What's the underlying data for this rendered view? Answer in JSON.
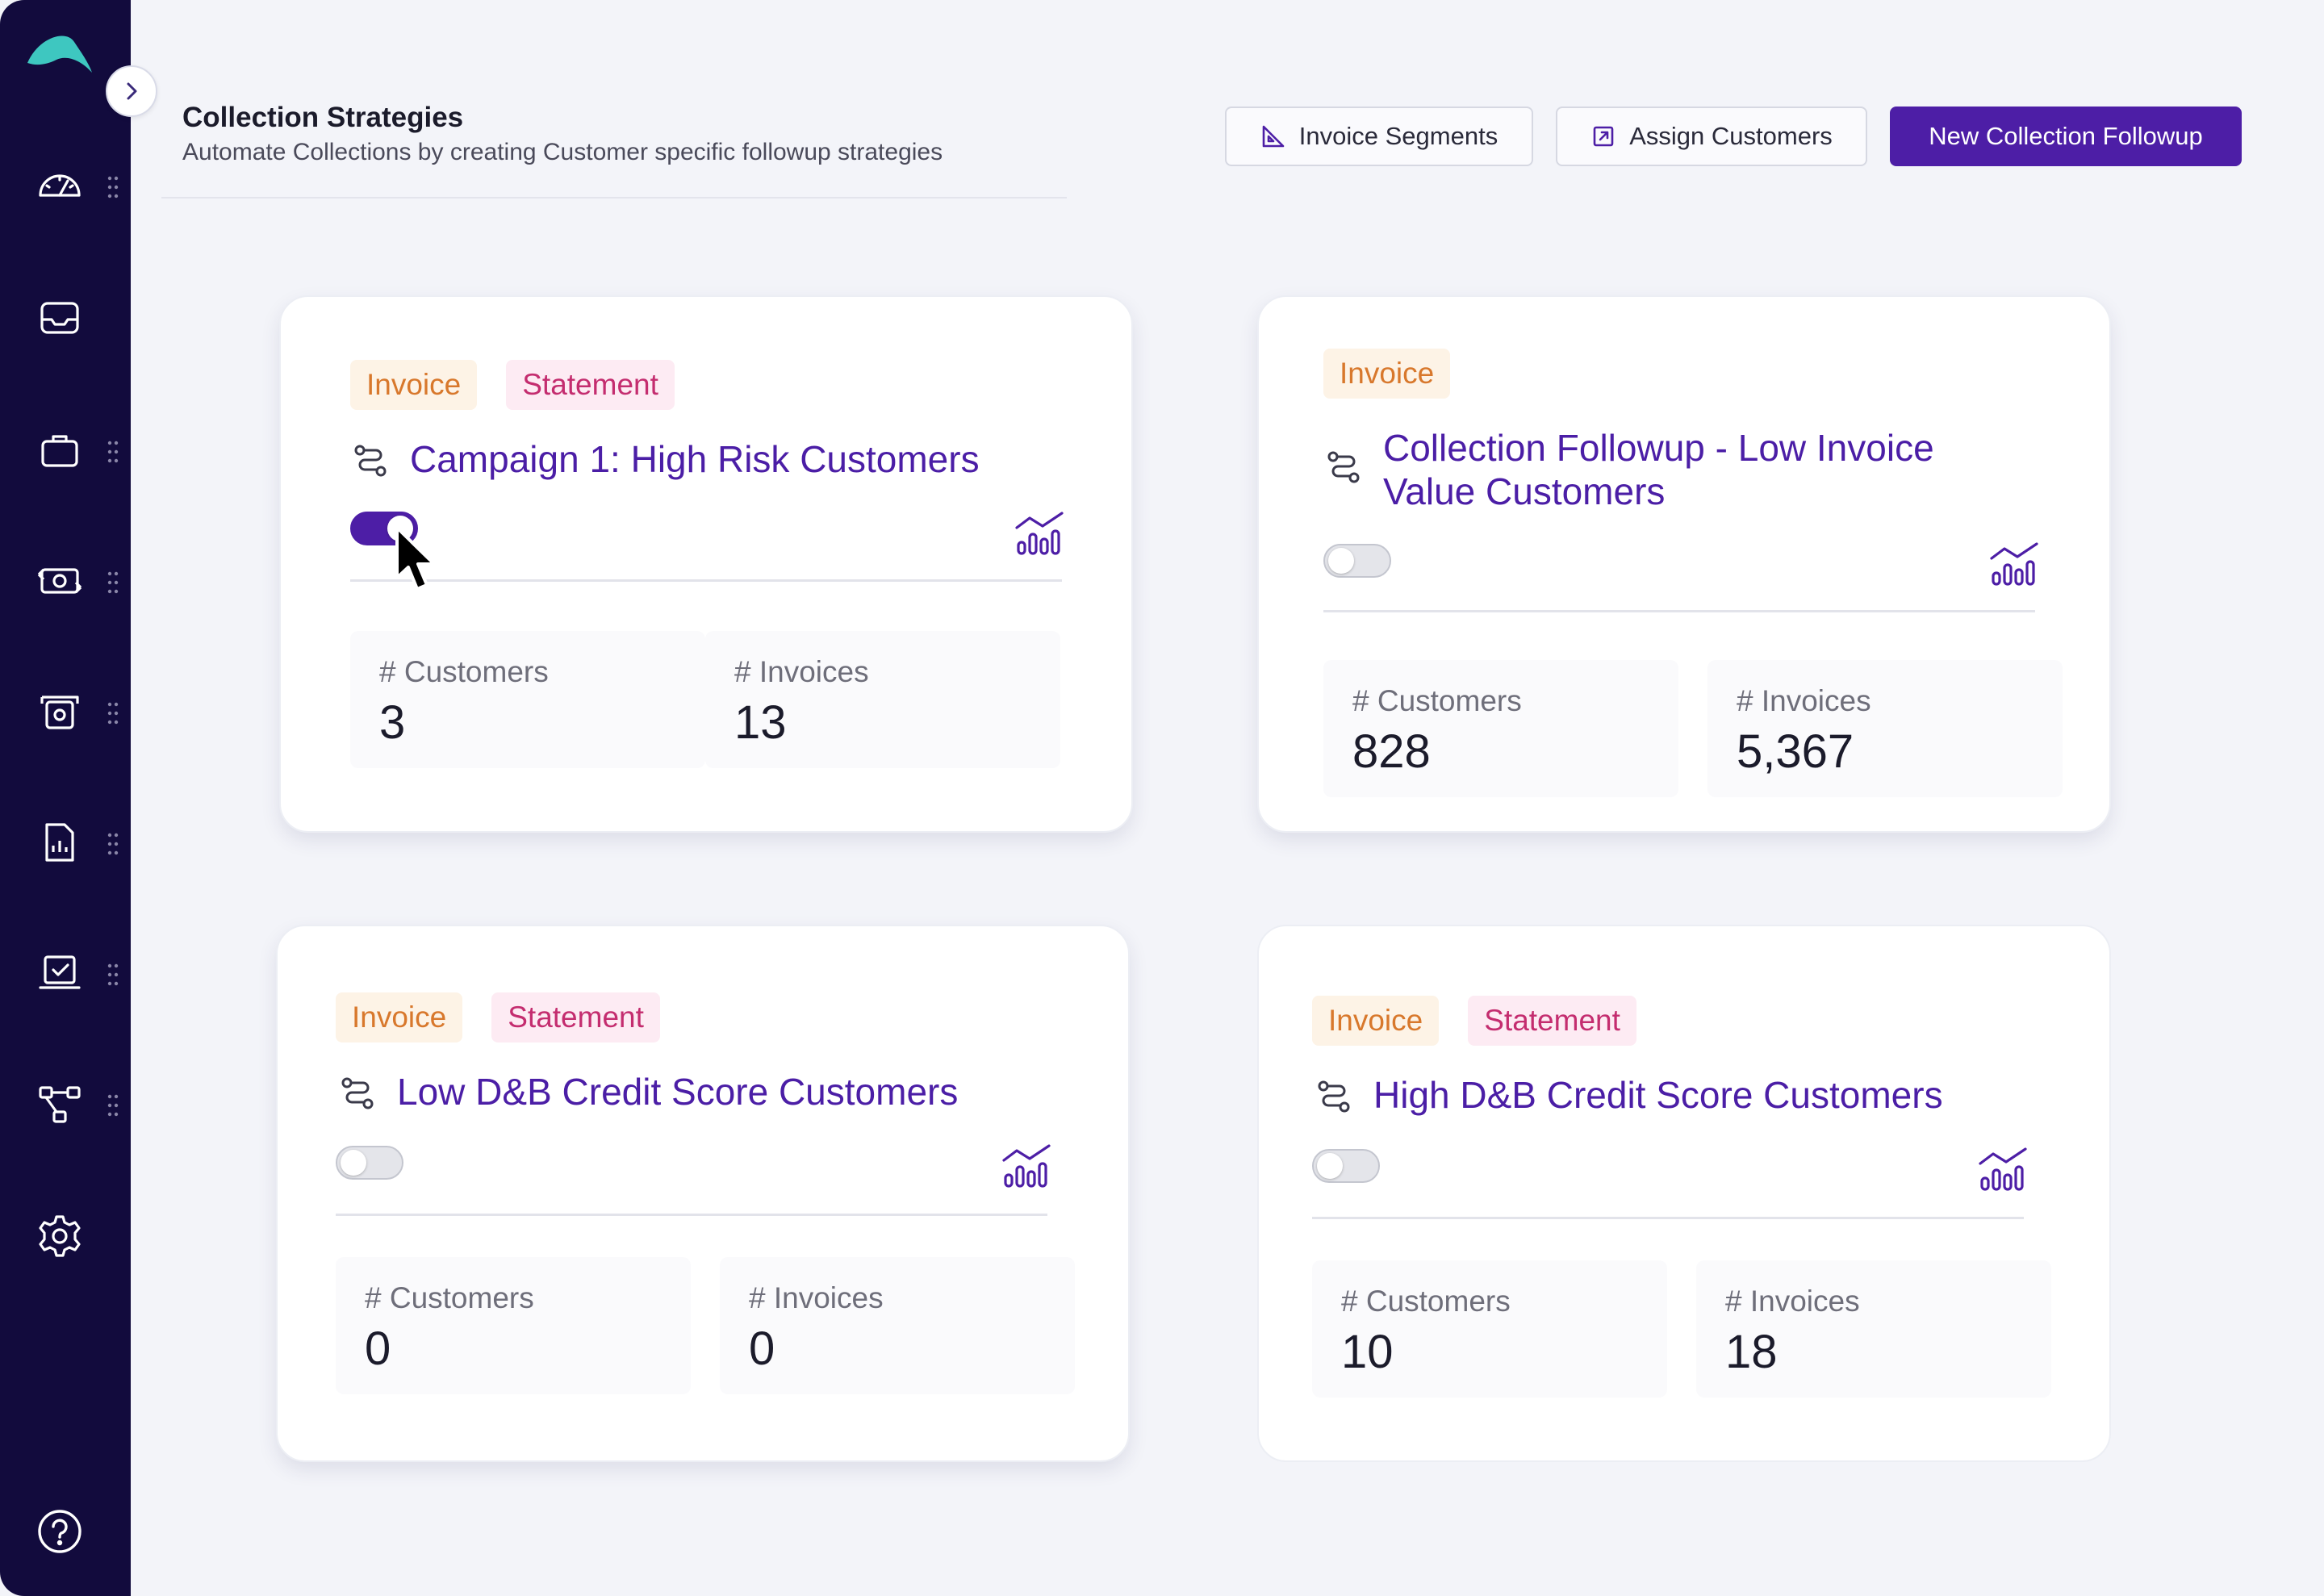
{
  "header": {
    "title": "Collection Strategies",
    "subtitle": "Automate Collections by creating Customer specific followup strategies",
    "buttons": {
      "invoice_segments": "Invoice Segments",
      "assign_customers": "Assign Customers",
      "new_followup": "New Collection Followup"
    }
  },
  "sidebar": {
    "items": [
      {
        "icon": "dashboard-gauge-icon"
      },
      {
        "icon": "inbox-icon"
      },
      {
        "icon": "briefcase-icon"
      },
      {
        "icon": "payments-icon"
      },
      {
        "icon": "cash-register-icon"
      },
      {
        "icon": "report-icon"
      },
      {
        "icon": "approvals-icon"
      },
      {
        "icon": "workflow-icon"
      },
      {
        "icon": "settings-gear-icon"
      },
      {
        "icon": "help-icon"
      }
    ]
  },
  "cards": [
    {
      "tags": [
        "Invoice",
        "Statement"
      ],
      "title": "Campaign 1: High Risk Customers",
      "enabled": true,
      "customers_label": "# Customers",
      "customers": "3",
      "invoices_label": "# Invoices",
      "invoices": "13"
    },
    {
      "tags": [
        "Invoice"
      ],
      "title_line1": "Collection Followup - Low Invoice",
      "title_line2": "Value Customers",
      "enabled": false,
      "customers_label": "# Customers",
      "customers": "828",
      "invoices_label": "# Invoices",
      "invoices": "5,367"
    },
    {
      "tags": [
        "Invoice",
        "Statement"
      ],
      "title": "Low D&B Credit Score Customers",
      "enabled": false,
      "customers_label": "# Customers",
      "customers": "0",
      "invoices_label": "# Invoices",
      "invoices": "0"
    },
    {
      "tags": [
        "Invoice",
        "Statement"
      ],
      "title": "High D&B Credit Score Customers",
      "enabled": false,
      "customers_label": "# Customers",
      "customers": "10",
      "invoices_label": "# Invoices",
      "invoices": "18"
    }
  ],
  "colors": {
    "sidebar": "#120b3d",
    "primary": "#4d1ea6",
    "invoice_tag": "#d8782c",
    "statement_tag": "#c42d6f"
  }
}
